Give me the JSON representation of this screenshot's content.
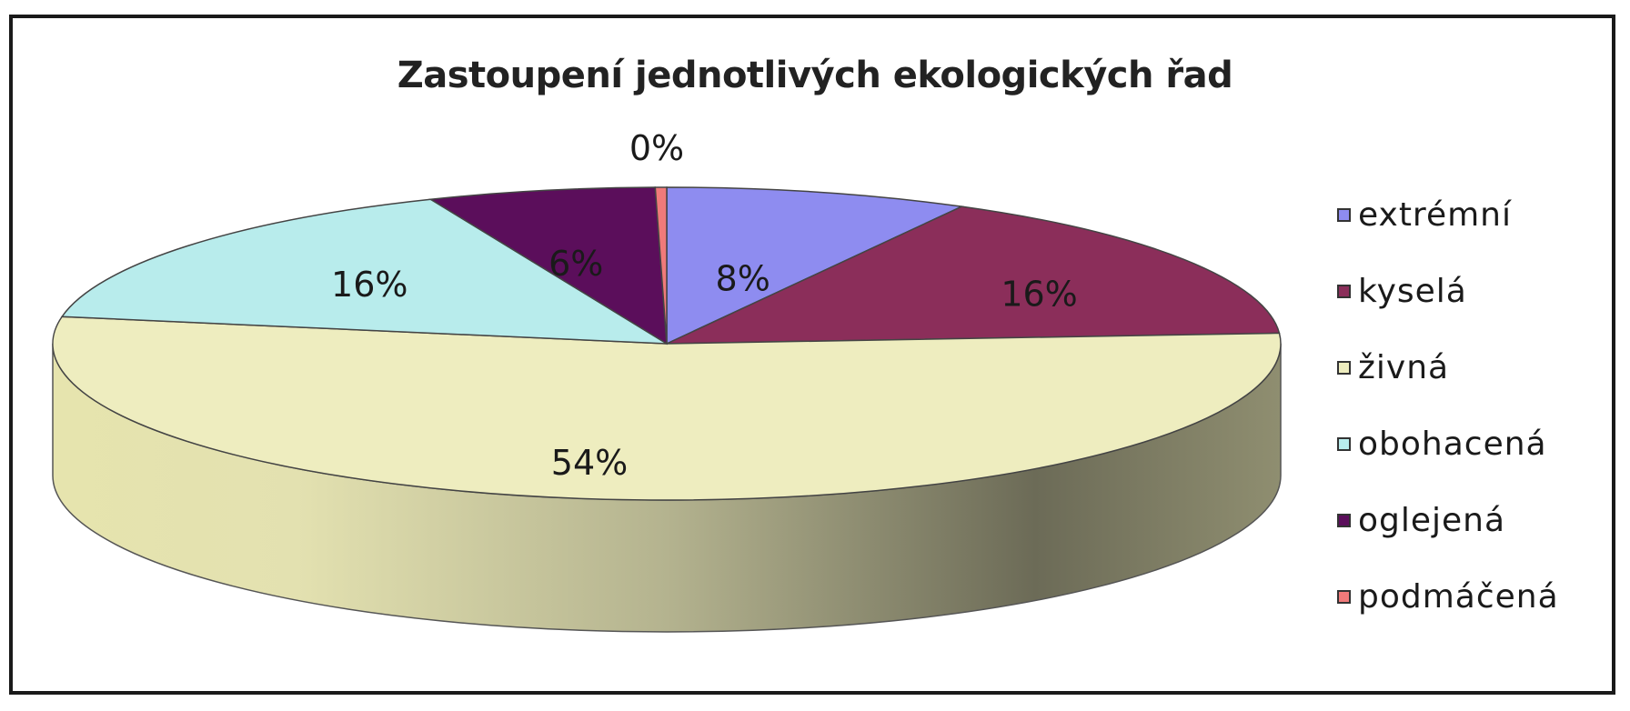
{
  "chart_data": {
    "type": "pie",
    "title": "Zastoupení jednotlivých ekologických řad",
    "categories": [
      "extrémní",
      "kyselá",
      "živná",
      "obohacená",
      "oglejená",
      "podmáčená"
    ],
    "values": [
      8,
      16,
      54,
      16,
      6,
      0.3
    ],
    "labels": [
      "8%",
      "16%",
      "54%",
      "16%",
      "6%",
      "0%"
    ],
    "colors": [
      "#8e8cf0",
      "#8b2e5a",
      "#eeedbf",
      "#b8ecec",
      "#5b0e5b",
      "#f07a7a"
    ],
    "legend_position": "right",
    "style": "3d"
  }
}
